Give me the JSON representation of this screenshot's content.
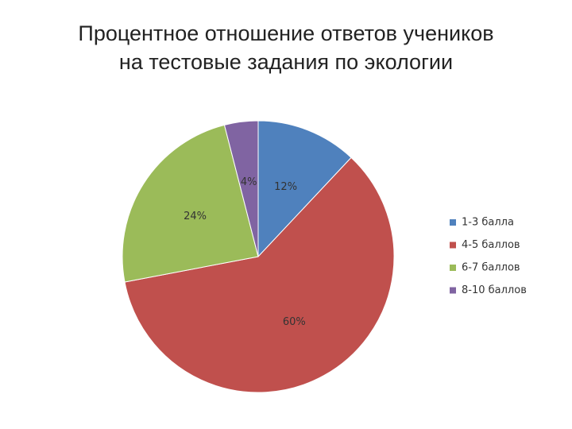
{
  "chart_data": {
    "type": "pie",
    "title": "Процентное отношение ответов учеников на тестовые задания по экологии",
    "categories": [
      "1-3 балла",
      "4-5 баллов",
      "6-7 баллов",
      "8-10 баллов"
    ],
    "values": [
      12,
      60,
      24,
      4
    ],
    "value_labels": [
      "12%",
      "60%",
      "24%",
      "4%"
    ],
    "colors": [
      "#4f81bd",
      "#c0504d",
      "#9bbb59",
      "#8064a2"
    ],
    "legend": "right"
  }
}
